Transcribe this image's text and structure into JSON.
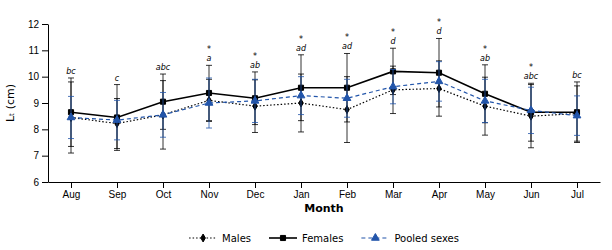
{
  "chart_data": {
    "type": "line",
    "xlabel": "Month",
    "ylabel": "Lₜ (cm)",
    "categories": [
      "Aug",
      "Sep",
      "Oct",
      "Nov",
      "Dec",
      "Jan",
      "Feb",
      "Mar",
      "Apr",
      "May",
      "Jun",
      "Jul"
    ],
    "series": [
      {
        "name": "Males",
        "color": "#000000",
        "marker": "diamond",
        "line_style": "dotted",
        "values": [
          8.45,
          8.22,
          8.55,
          9.1,
          8.88,
          9.0,
          8.75,
          9.5,
          9.55,
          8.88,
          8.5,
          8.6
        ],
        "errors": [
          1.35,
          0.95,
          1.3,
          0.8,
          1.0,
          1.1,
          1.25,
          0.9,
          1.05,
          1.1,
          1.2,
          1.05
        ]
      },
      {
        "name": "Females",
        "color": "#000000",
        "marker": "square",
        "line_style": "solid",
        "values": [
          8.65,
          8.45,
          9.05,
          9.38,
          9.18,
          9.58,
          9.58,
          10.2,
          10.15,
          9.35,
          8.65,
          8.65
        ],
        "errors": [
          1.3,
          1.25,
          1.05,
          1.05,
          1.0,
          1.25,
          1.3,
          0.88,
          1.3,
          1.1,
          1.1,
          1.15
        ]
      },
      {
        "name": "Pooled sexes",
        "color": "#2255aa",
        "marker": "triangle",
        "line_style": "dashed",
        "values": [
          8.45,
          8.35,
          8.55,
          9.0,
          9.08,
          9.28,
          9.18,
          9.62,
          9.82,
          9.08,
          8.72,
          8.52
        ],
        "errors": [
          0.8,
          0.75,
          0.85,
          0.95,
          0.82,
          0.72,
          0.72,
          0.65,
          0.75,
          0.82,
          0.88,
          0.75
        ]
      }
    ],
    "annotations": [
      [
        "bc"
      ],
      [
        "c"
      ],
      [
        "abc"
      ],
      [
        "*",
        "a"
      ],
      [
        "*",
        "ab"
      ],
      [
        "*",
        "ad"
      ],
      [
        "*",
        "ad"
      ],
      [
        "*",
        "d"
      ],
      [
        "*",
        "d"
      ],
      [
        "*",
        "ab"
      ],
      [
        "*",
        "abc"
      ],
      [
        "bc"
      ]
    ],
    "ylim": [
      6,
      12
    ],
    "yticks": [
      6,
      7,
      8,
      9,
      10,
      11,
      12
    ],
    "grid": false,
    "legend": "bottom"
  }
}
